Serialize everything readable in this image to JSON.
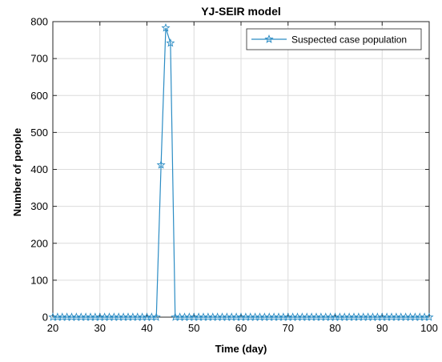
{
  "chart_data": {
    "type": "line",
    "title": "YJ-SEIR model",
    "xlabel": "Time (day)",
    "ylabel": "Number of people",
    "xlim": [
      20,
      100
    ],
    "ylim": [
      0,
      800
    ],
    "xticks": [
      20,
      30,
      40,
      50,
      60,
      70,
      80,
      90,
      100
    ],
    "yticks": [
      0,
      100,
      200,
      300,
      400,
      500,
      600,
      700,
      800
    ],
    "grid": true,
    "legend_position": "top-right",
    "series": [
      {
        "name": "Suspected case population",
        "color": "#2b8cc4",
        "marker": "star",
        "x": [
          20,
          21,
          22,
          23,
          24,
          25,
          26,
          27,
          28,
          29,
          30,
          31,
          32,
          33,
          34,
          35,
          36,
          37,
          38,
          39,
          40,
          41,
          42,
          43,
          44,
          45,
          46,
          47,
          48,
          49,
          50,
          51,
          52,
          53,
          54,
          55,
          56,
          57,
          58,
          59,
          60,
          61,
          62,
          63,
          64,
          65,
          66,
          67,
          68,
          69,
          70,
          71,
          72,
          73,
          74,
          75,
          76,
          77,
          78,
          79,
          80,
          81,
          82,
          83,
          84,
          85,
          86,
          87,
          88,
          89,
          90,
          91,
          92,
          93,
          94,
          95,
          96,
          97,
          98,
          99,
          100
        ],
        "y": [
          0,
          0,
          0,
          0,
          0,
          0,
          0,
          0,
          0,
          0,
          0,
          0,
          0,
          0,
          0,
          0,
          0,
          0,
          0,
          0,
          0,
          0,
          0,
          412,
          783,
          742,
          0,
          0,
          0,
          0,
          0,
          0,
          0,
          0,
          0,
          0,
          0,
          0,
          0,
          0,
          0,
          0,
          0,
          0,
          0,
          0,
          0,
          0,
          0,
          0,
          0,
          0,
          0,
          0,
          0,
          0,
          0,
          0,
          0,
          0,
          0,
          0,
          0,
          0,
          0,
          0,
          0,
          0,
          0,
          0,
          0,
          0,
          0,
          0,
          0,
          0,
          0,
          0,
          0,
          0,
          0
        ]
      }
    ]
  }
}
